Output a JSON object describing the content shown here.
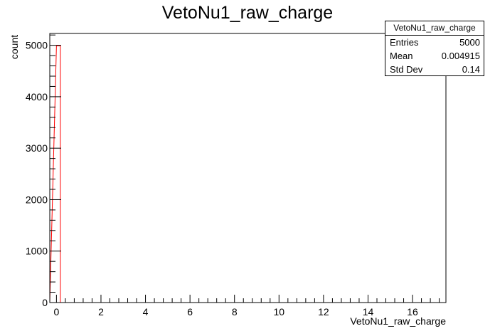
{
  "chart_data": {
    "type": "bar",
    "title": "VetoNu1_raw_charge",
    "xlabel": "VetoNu1_raw_charge",
    "ylabel": "count",
    "xlim": [
      -0.3,
      17.5
    ],
    "ylim": [
      0,
      5230
    ],
    "xticks": [
      0,
      2,
      4,
      6,
      8,
      10,
      12,
      14,
      16
    ],
    "yticks": [
      0,
      1000,
      2000,
      3000,
      4000,
      5000
    ],
    "bins": [
      {
        "x0": 0.0,
        "x1": 0.175,
        "value": 4989
      },
      {
        "x0": 0.175,
        "x1": 17.5,
        "value": 0
      }
    ],
    "line_color": "#ff0000",
    "grid": false,
    "stats": {
      "name": "VetoNu1_raw_charge",
      "rows": [
        {
          "label": "Entries",
          "value": "5000"
        },
        {
          "label": "Mean",
          "value": "0.004915"
        },
        {
          "label": "Std Dev",
          "value": "0.14"
        }
      ]
    }
  }
}
